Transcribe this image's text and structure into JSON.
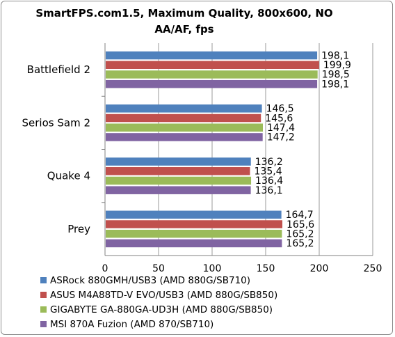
{
  "chart_data": {
    "type": "bar",
    "orientation": "horizontal",
    "title": "SmartFPS.com1.5, Maximum Quality, 800x600, NO AA/AF, fps",
    "categories": [
      "Battlefield 2",
      "Serios Sam 2",
      "Quake 4",
      "Prey"
    ],
    "series": [
      {
        "name": "ASRock 880GMH/USB3 (AMD 880G/SB710)",
        "color": "#4f81bd",
        "values": [
          198.1,
          146.5,
          136.2,
          164.7
        ],
        "labels": [
          "198,1",
          "146,5",
          "136,2",
          "164,7"
        ]
      },
      {
        "name": "ASUS M4A88TD-V EVO/USB3 (AMD 880G/SB850)",
        "color": "#c0504d",
        "values": [
          199.9,
          145.6,
          135.4,
          165.6
        ],
        "labels": [
          "199,9",
          "145,6",
          "135,4",
          "165,6"
        ]
      },
      {
        "name": "GIGABYTE GA-880GA-UD3H (AMD 880G/SB850)",
        "color": "#9bbb59",
        "values": [
          198.5,
          147.4,
          136.4,
          165.2
        ],
        "labels": [
          "198,5",
          "147,4",
          "136,4",
          "165,2"
        ]
      },
      {
        "name": "MSI 870A Fuzion (AMD 870/SB710)",
        "color": "#8064a2",
        "values": [
          198.1,
          147.2,
          136.1,
          165.2
        ],
        "labels": [
          "198,1",
          "147,2",
          "136,1",
          "165,2"
        ]
      }
    ],
    "xlim": [
      0,
      250
    ],
    "xticks": [
      0,
      50,
      100,
      150,
      200,
      250
    ],
    "grid": true,
    "legend_position": "bottom"
  }
}
